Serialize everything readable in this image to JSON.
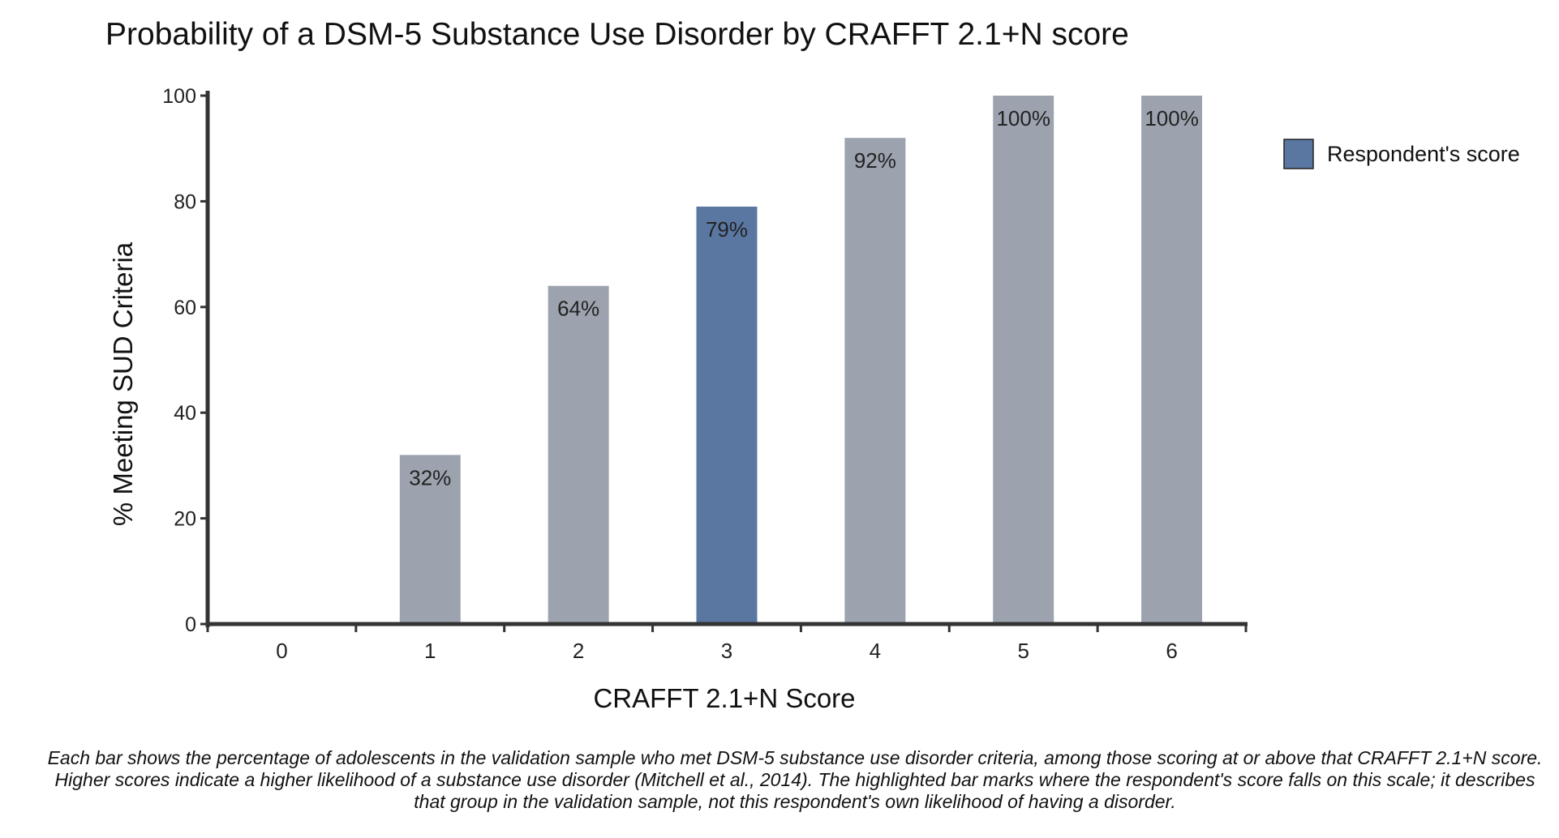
{
  "chart_data": {
    "type": "bar",
    "title": "Probability of a DSM-5 Substance Use Disorder by CRAFFT 2.1+N score",
    "xlabel": "CRAFFT 2.1+N Score",
    "ylabel": "% Meeting SUD Criteria",
    "categories": [
      "0",
      "1",
      "2",
      "3",
      "4",
      "5",
      "6"
    ],
    "values": [
      0,
      32,
      64,
      79,
      92,
      100,
      100
    ],
    "value_labels": [
      "",
      "32%",
      "64%",
      "79%",
      "92%",
      "100%",
      "100%"
    ],
    "highlight_index": 3,
    "ylim": [
      0,
      100
    ],
    "yticks": [
      0,
      20,
      40,
      60,
      80,
      100
    ],
    "ytick_labels": [
      "0",
      "20",
      "40",
      "60",
      "80",
      "100"
    ],
    "grid": false,
    "legend": {
      "placement": "right",
      "entries": [
        {
          "label": "Respondent's score",
          "color": "#5a77a2"
        }
      ]
    },
    "colors": {
      "bar": "#9ca3ae",
      "highlight": "#5a77a2",
      "axis": "#333333"
    }
  },
  "caption": "Each bar shows the percentage of adolescents in the validation sample who met DSM-5 substance use disorder criteria, among those scoring at or above that CRAFFT 2.1+N score. Higher scores indicate a higher likelihood of a substance use disorder (Mitchell et al., 2014). The highlighted bar marks where the respondent's score falls on this scale; it describes that group in the validation sample, not this respondent's own likelihood of having a disorder."
}
